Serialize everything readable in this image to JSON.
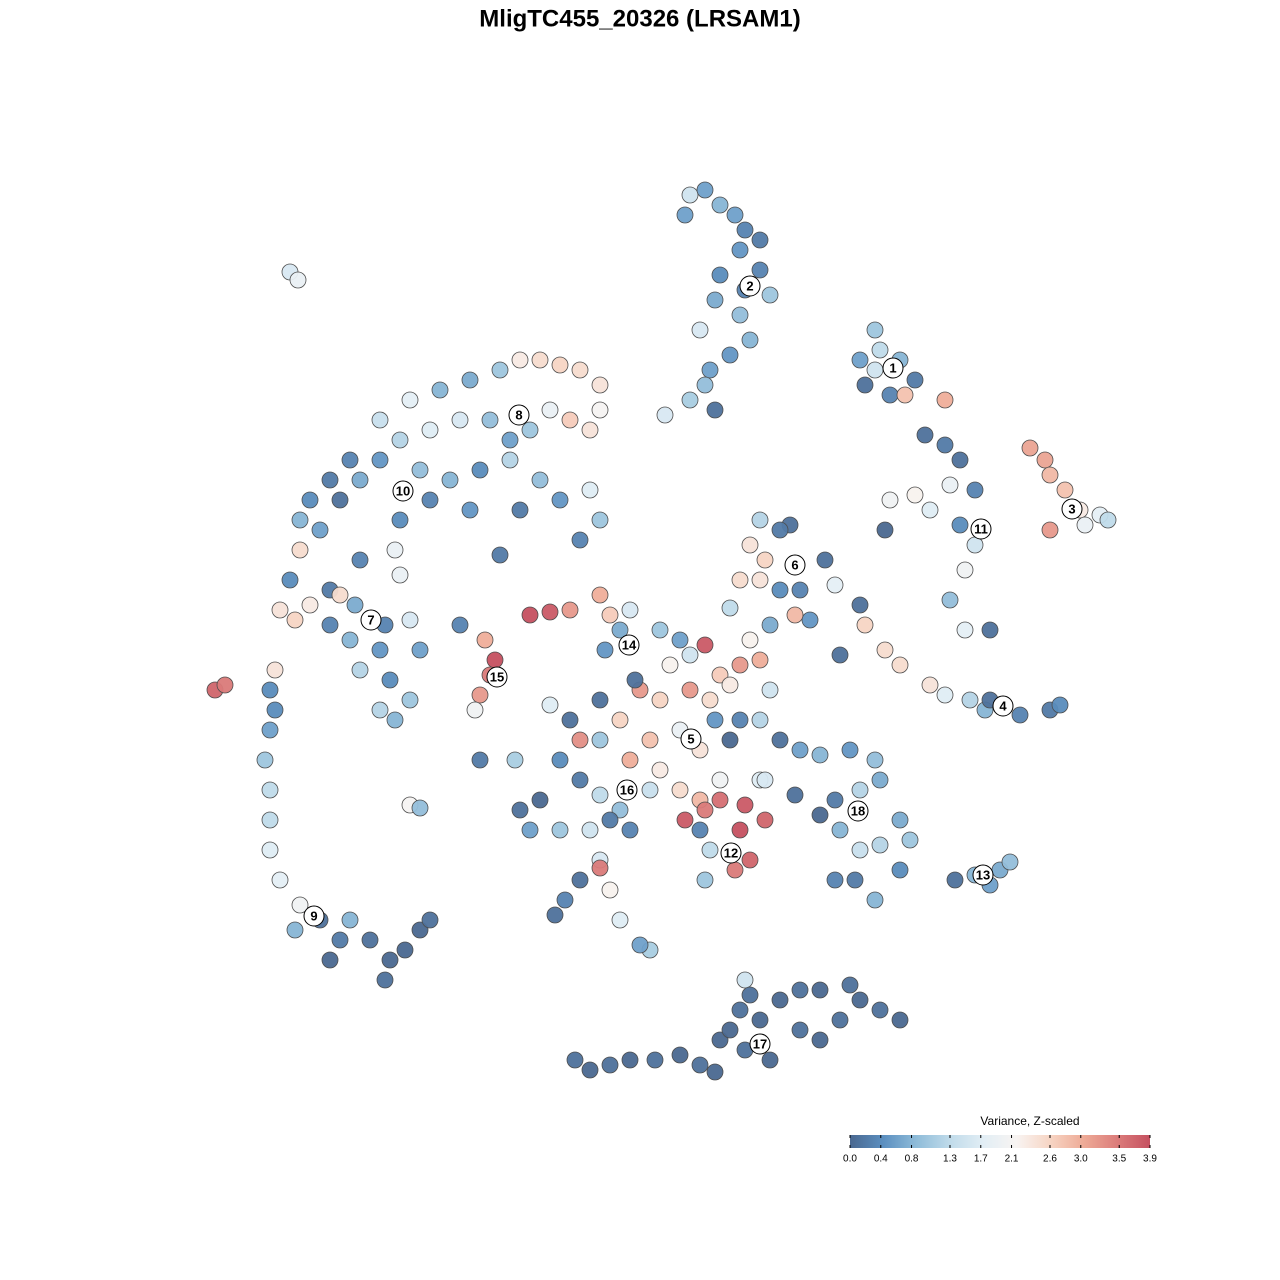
{
  "chart_data": {
    "type": "scatter",
    "title": "MligTC455_20326 (LRSAM1)",
    "xlim": [
      -44,
      48
    ],
    "ylim": [
      -45,
      47
    ],
    "series": [
      {
        "x": [
          5,
          6.5,
          8,
          9.5,
          10.5,
          12,
          10,
          8,
          12,
          13,
          7.5,
          10,
          6,
          11,
          9,
          7,
          6.5,
          5,
          7.5,
          2.5,
          10.5,
          4.5
        ],
        "y": [
          44.5,
          45,
          43.5,
          42.5,
          41,
          40,
          39,
          36.5,
          37,
          34.5,
          34,
          32.5,
          31,
          30,
          28.5,
          27,
          25.5,
          24,
          23,
          22.5,
          35,
          42.5
        ],
        "values": [
          1.5,
          0.6,
          0.8,
          0.6,
          0.3,
          0.2,
          0.5,
          0.4,
          0.3,
          1.0,
          0.7,
          0.9,
          1.6,
          0.8,
          0.5,
          0.6,
          0.9,
          1.1,
          0.1,
          1.6,
          0.3,
          0.6
        ]
      },
      {
        "x": [
          23.5,
          22,
          24,
          26,
          22.5,
          27.5,
          25,
          26.5,
          30.5,
          23.5
        ],
        "y": [
          31,
          28,
          29,
          28,
          25.5,
          26,
          24.5,
          24.5,
          24,
          27
        ],
        "values": [
          1.0,
          0.6,
          1.3,
          0.8,
          0.1,
          0.2,
          0.3,
          2.8,
          3.0,
          1.5
        ]
      },
      {
        "x": [
          -35,
          -34.2
        ],
        "y": [
          36.8,
          36
        ],
        "values": [
          1.6,
          1.9
        ]
      },
      {
        "x": [
          39,
          40.5,
          41,
          42.5,
          44,
          46,
          41,
          44.5,
          46.8
        ],
        "y": [
          19.2,
          18,
          16.5,
          15,
          13,
          12.5,
          11,
          11.5,
          12
        ],
        "values": [
          3.1,
          3.1,
          2.9,
          2.8,
          2.3,
          1.8,
          3.2,
          1.9,
          1.3
        ]
      },
      {
        "x": [
          28.5,
          30.5,
          32,
          33.5,
          31,
          27.5,
          25,
          29,
          32,
          33.5,
          32.5,
          31,
          32.5,
          35,
          24.5
        ],
        "y": [
          20.5,
          19.5,
          18,
          15,
          15.5,
          14.5,
          14,
          13,
          11.5,
          9.5,
          7,
          4,
          1,
          1,
          11
        ],
        "values": [
          0.1,
          0.2,
          0.1,
          0.3,
          1.9,
          2.2,
          2.0,
          1.7,
          0.4,
          1.5,
          2.0,
          0.9,
          1.8,
          0.1,
          0.0
        ]
      },
      {
        "x": [
          12,
          15,
          14,
          11,
          12.5,
          10,
          12,
          14,
          16,
          17,
          15.5,
          13,
          19.5,
          18.5,
          9
        ],
        "y": [
          12,
          11.5,
          11,
          9.5,
          8,
          6,
          6,
          5,
          5,
          2,
          2.5,
          1.5,
          5.5,
          8,
          3.2
        ],
        "values": [
          1.2,
          0.1,
          0.2,
          2.4,
          2.6,
          2.5,
          2.4,
          0.4,
          0.3,
          0.5,
          2.9,
          0.7,
          1.8,
          0.1,
          1.3
        ]
      },
      {
        "x": [
          22,
          22.5,
          24.5,
          26,
          29,
          30.5,
          33,
          34.5,
          35,
          38,
          41,
          42,
          20
        ],
        "y": [
          3.5,
          1.5,
          -1,
          -2.5,
          -4.5,
          -5.5,
          -6,
          -7,
          -6,
          -7.5,
          -7,
          -6.5,
          -1.5
        ],
        "values": [
          0.1,
          2.6,
          2.5,
          2.5,
          2.4,
          1.7,
          1.2,
          0.8,
          0.1,
          0.3,
          0.2,
          0.4,
          0.1
        ]
      },
      {
        "x": [
          -34,
          -33,
          -31,
          -29,
          -26,
          -23,
          -20,
          -17,
          -14,
          -12,
          -10,
          -8,
          -6,
          -4,
          -4,
          -5,
          -7,
          -9,
          -11,
          -13,
          -15,
          -18,
          -21,
          -24,
          -26,
          -28,
          -30,
          -32,
          -22,
          -19,
          -16,
          -13,
          -10,
          -8,
          -5,
          -4,
          -6,
          -12,
          -17,
          -21,
          -24,
          -24.5,
          -24,
          -28,
          -34,
          -35,
          -31,
          -14
        ],
        "y": [
          12,
          14,
          16,
          18,
          22,
          24,
          25,
          26,
          27,
          28,
          28,
          27.5,
          27,
          25.5,
          23,
          21,
          22,
          23,
          21,
          20,
          22,
          22,
          21,
          20,
          18,
          16,
          14,
          11,
          17,
          16,
          17,
          18,
          16,
          14,
          15,
          12,
          10,
          13,
          13,
          14,
          12,
          9,
          6.5,
          8,
          9,
          6,
          5,
          8.5
        ],
        "values": [
          0.8,
          0.4,
          0.2,
          0.3,
          1.4,
          1.8,
          0.8,
          0.7,
          1.0,
          2.3,
          2.5,
          2.6,
          2.5,
          2.4,
          2.1,
          2.4,
          2.7,
          1.9,
          1.0,
          0.6,
          0.9,
          1.6,
          1.7,
          1.2,
          0.5,
          0.7,
          0.1,
          0.6,
          0.9,
          0.8,
          0.4,
          1.2,
          0.9,
          0.5,
          1.7,
          1.0,
          0.3,
          0.2,
          0.5,
          0.3,
          0.4,
          1.9,
          1.9,
          0.3,
          2.5,
          0.4,
          0.2,
          0.2
        ]
      },
      {
        "x": [
          -36,
          -34.5,
          -33,
          -30,
          -28.5,
          -25.5,
          -23,
          -29,
          -26,
          -22,
          -28,
          -25,
          -23,
          -26,
          -24.5,
          -31
        ],
        "y": [
          3,
          2,
          3.5,
          4.5,
          3.5,
          1.5,
          2,
          0,
          -1,
          -1,
          -3,
          -4,
          -6,
          -7,
          -8,
          1.5
        ],
        "values": [
          2.4,
          2.6,
          2.3,
          2.5,
          0.7,
          0.3,
          1.6,
          0.8,
          0.5,
          0.6,
          1.2,
          0.4,
          1.0,
          1.2,
          0.8,
          0.3
        ]
      },
      {
        "x": [
          -36.5,
          -37,
          -36.5,
          -37,
          -37.5,
          -37,
          -37,
          -37,
          -36,
          -34,
          -34.5,
          -32,
          -30,
          -31,
          -29,
          -27,
          -25,
          -25.5,
          -23.5,
          -22,
          -21
        ],
        "y": [
          -3,
          -5,
          -7,
          -9,
          -12,
          -15,
          -18,
          -21,
          -24,
          -26.5,
          -29,
          -28,
          -30,
          -32,
          -28,
          -30,
          -32,
          -34,
          -31,
          -29,
          -28
        ],
        "values": [
          2.4,
          0.4,
          0.4,
          0.6,
          1.0,
          1.3,
          1.3,
          1.7,
          1.8,
          2.0,
          0.8,
          0.1,
          0.2,
          0.0,
          0.8,
          0.1,
          0.0,
          0.1,
          0.0,
          0.0,
          0.1
        ]
      },
      {
        "x": [
          -42.5,
          -41.5
        ],
        "y": [
          -5,
          -4.5
        ],
        "values": [
          3.7,
          3.5
        ]
      },
      {
        "x": [
          -23,
          -22
        ],
        "y": [
          -16.5,
          -16.8
        ],
        "values": [
          2.1,
          0.9
        ]
      },
      {
        "x": [
          -18,
          -15.5,
          -14.5,
          -15,
          -16,
          -16.5
        ],
        "y": [
          1.5,
          0,
          -2,
          -3.5,
          -5.5,
          -7
        ],
        "values": [
          0.3,
          3.0,
          3.9,
          3.5,
          3.2,
          2.0
        ]
      },
      {
        "x": [
          -11,
          -9,
          -7,
          -4,
          -3,
          -1,
          -2,
          -3.5,
          2,
          4,
          5,
          6.5,
          3,
          0,
          2,
          5,
          7,
          8,
          10,
          12,
          9,
          11,
          13,
          7.5,
          9,
          10,
          -2,
          1,
          4,
          6,
          2,
          -1,
          -4,
          -6,
          -7,
          -4,
          -0.5,
          8,
          6,
          4,
          12,
          14,
          12,
          -9
        ],
        "y": [
          2.5,
          2.8,
          3,
          4.5,
          2.5,
          3,
          1,
          -1,
          1,
          0,
          -1.5,
          -0.5,
          -2.5,
          -5,
          -6,
          -5,
          -6,
          -3.5,
          -2.5,
          -2,
          -4.5,
          0,
          -5,
          -8,
          -10,
          -8,
          -8,
          -10,
          -9,
          -11,
          -13,
          -12,
          -10,
          -10,
          -8,
          -6,
          -4,
          -14,
          -16,
          -15,
          -14,
          -10,
          -8,
          -6.5
        ],
        "values": [
          3.9,
          3.8,
          3.2,
          3.0,
          2.7,
          1.6,
          0.7,
          0.5,
          1.0,
          0.6,
          1.5,
          3.8,
          2.2,
          3.2,
          2.6,
          3.2,
          2.5,
          2.7,
          3.2,
          3.0,
          2.3,
          2.2,
          1.5,
          0.5,
          0.0,
          0.3,
          2.6,
          2.8,
          1.9,
          2.4,
          2.3,
          3.0,
          1.0,
          3.3,
          0.1,
          0.1,
          0.1,
          2.0,
          2.9,
          2.5,
          1.7,
          0.1,
          1.2,
          1.7
        ]
      },
      {
        "x": [
          -8,
          -6,
          -4,
          -2,
          1,
          -10,
          -12,
          -11,
          -8,
          -5,
          -3,
          -1,
          -16,
          -12.5,
          -4,
          -6,
          -7.5,
          -8.5,
          -3,
          -2,
          1,
          0,
          -4
        ],
        "y": [
          -12,
          -14,
          -15.5,
          -17,
          -15,
          -16,
          -17,
          -19,
          -19,
          -19,
          -18,
          -19,
          -12,
          -12,
          -22,
          -24,
          -26,
          -27.5,
          -25,
          -28,
          -31,
          -30.5,
          -22.8
        ],
        "values": [
          0.4,
          0.2,
          1.3,
          0.9,
          1.4,
          0.0,
          0.1,
          0.6,
          1.0,
          1.5,
          0.2,
          0.3,
          0.2,
          1.1,
          1.6,
          0.1,
          0.3,
          0.1,
          2.2,
          1.7,
          1.1,
          0.6,
          3.5
        ]
      },
      {
        "x": [
          4.5,
          6.5,
          8,
          10.5,
          12.5,
          10,
          11,
          9.5,
          7,
          6.5,
          6
        ],
        "y": [
          -18,
          -17,
          -16,
          -16.5,
          -18,
          -19,
          -22,
          -23,
          -21,
          -24,
          -19
        ],
        "values": [
          3.8,
          3.5,
          3.6,
          3.8,
          3.7,
          3.9,
          3.7,
          3.5,
          1.3,
          1.0,
          0.3
        ]
      },
      {
        "x": [
          16,
          18,
          21,
          23.5,
          24,
          22,
          19.5,
          18,
          20,
          22,
          24,
          26,
          27,
          26,
          23.5,
          21.5,
          19.5,
          15.5,
          12.5
        ],
        "y": [
          -11,
          -11.5,
          -11,
          -12,
          -14,
          -15,
          -16,
          -17.5,
          -19,
          -21,
          -20.5,
          -18,
          -20,
          -23,
          -26,
          -24,
          -24,
          -15.5,
          -14
        ],
        "values": [
          0.6,
          0.8,
          0.5,
          0.9,
          0.7,
          1.2,
          0.2,
          0.0,
          0.8,
          1.4,
          1.2,
          0.7,
          1.0,
          0.4,
          0.8,
          0.2,
          0.3,
          0.1,
          1.6
        ]
      },
      {
        "x": [
          31.5,
          33.5,
          35,
          36,
          37
        ],
        "y": [
          -24,
          -23.5,
          -24.5,
          -23,
          -22.2
        ],
        "values": [
          0.1,
          0.8,
          0.6,
          0.7,
          0.9
        ]
      },
      {
        "x": [
          -6.5,
          -5,
          -3,
          -1,
          1.5,
          4,
          6,
          7.5,
          8,
          10.5,
          12,
          10.5,
          11,
          14,
          16,
          18,
          20,
          22,
          24,
          26,
          21,
          18,
          16,
          13,
          10,
          9
        ],
        "y": [
          -42,
          -43,
          -42.5,
          -42,
          -42,
          -41.5,
          -42.5,
          -43.2,
          -40,
          -41,
          -38,
          -34,
          -35.5,
          -36,
          -39,
          -40,
          -38,
          -36,
          -37,
          -38,
          -34.5,
          -35,
          -35,
          -42,
          -37,
          -39
        ],
        "values": [
          0.1,
          0.0,
          0.1,
          0.0,
          0.1,
          0.0,
          0.1,
          0.0,
          0.0,
          0.1,
          0.0,
          1.5,
          0.1,
          0.0,
          0.1,
          0.0,
          0.1,
          0.0,
          0.1,
          0.0,
          0.1,
          0.0,
          0.1,
          0.0,
          0.1,
          0.0
        ]
      }
    ],
    "annotations": [
      {
        "text": "1",
        "x": 25.3,
        "y": 27.2
      },
      {
        "text": "2",
        "x": 11,
        "y": 35.4
      },
      {
        "text": "3",
        "x": 43.2,
        "y": 13.1
      },
      {
        "text": "4",
        "x": 36.3,
        "y": -6.6
      },
      {
        "text": "5",
        "x": 5.1,
        "y": -9.9
      },
      {
        "text": "6",
        "x": 15.5,
        "y": 7.5
      },
      {
        "text": "7",
        "x": -26.9,
        "y": 2
      },
      {
        "text": "8",
        "x": -12.1,
        "y": 22.5
      },
      {
        "text": "9",
        "x": -32.6,
        "y": -27.6
      },
      {
        "text": "10",
        "x": -23.7,
        "y": 14.9
      },
      {
        "text": "11",
        "x": 34.1,
        "y": 11.1
      },
      {
        "text": "12",
        "x": 9.1,
        "y": -21.3
      },
      {
        "text": "13",
        "x": 34.3,
        "y": -23.5
      },
      {
        "text": "14",
        "x": -1.1,
        "y": -0.5
      },
      {
        "text": "15",
        "x": -14.3,
        "y": -3.7
      },
      {
        "text": "16",
        "x": -1.3,
        "y": -15
      },
      {
        "text": "17",
        "x": 12,
        "y": -40.4
      },
      {
        "text": "18",
        "x": 21.8,
        "y": -17.1
      }
    ],
    "colorscale": {
      "title": "Variance, Z-scaled",
      "lim": [
        0,
        3.9
      ],
      "colors": [
        "#4a6890",
        "#5b8fc0",
        "#8fbcd9",
        "#c0dbea",
        "#e2eef5",
        "#f8f4f2",
        "#f7d5c4",
        "#eeab97",
        "#dc7d7b",
        "#c55060"
      ],
      "ticks": [
        {
          "value": 0,
          "label": "0.0"
        },
        0.4,
        0.8,
        1.3,
        1.7,
        2.1,
        2.6,
        {
          "value": 3,
          "label": "3.0"
        },
        3.5,
        3.9
      ]
    }
  }
}
